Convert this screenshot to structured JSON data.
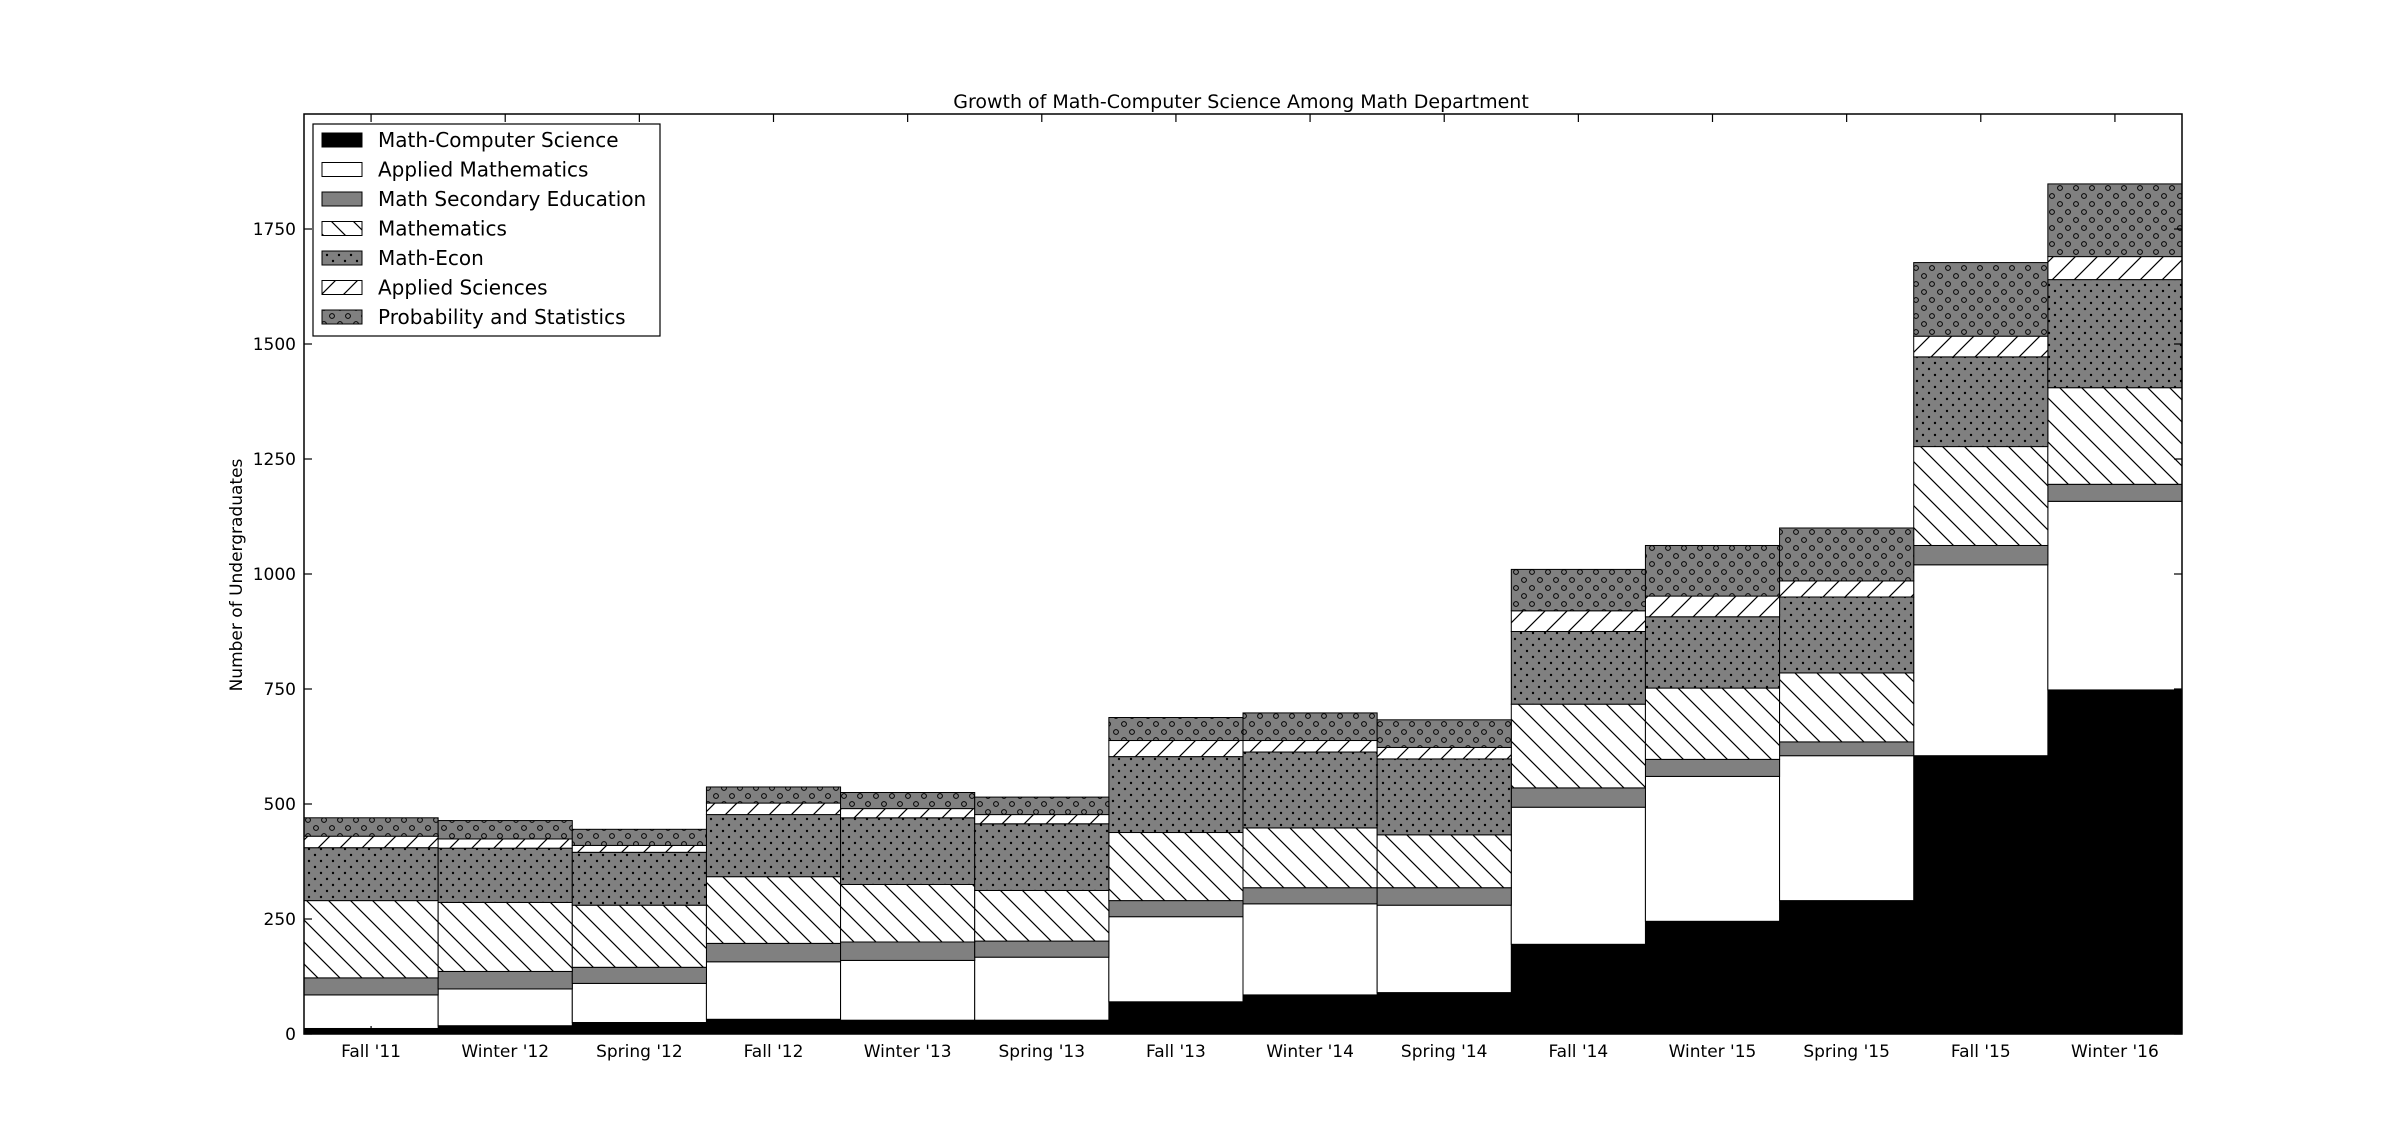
{
  "chart_data": {
    "type": "bar",
    "stacked": true,
    "title": "Growth of Math-Computer Science Among Math Department",
    "xlabel": "",
    "ylabel": "Number of Undergraduates",
    "ylim": [
      0,
      2000
    ],
    "yticks": [
      0,
      250,
      500,
      750,
      1000,
      1250,
      1500,
      1750
    ],
    "grid": false,
    "legend_position": "top-left",
    "categories": [
      "Fall '11",
      "Winter '12",
      "Spring '12",
      "Fall '12",
      "Winter '13",
      "Spring '13",
      "Fall '13",
      "Winter '14",
      "Spring '14",
      "Fall '14",
      "Winter '15",
      "Spring '15",
      "Fall '15",
      "Winter '16"
    ],
    "series": [
      {
        "name": "Math-Computer Science",
        "fill": "#000000",
        "pattern": "solid",
        "values": [
          12,
          18,
          25,
          32,
          30,
          30,
          70,
          85,
          90,
          195,
          245,
          290,
          605,
          748
        ]
      },
      {
        "name": "Applied Mathematics",
        "fill": "#ffffff",
        "pattern": "solid",
        "values": [
          73,
          80,
          85,
          125,
          130,
          137,
          185,
          198,
          190,
          298,
          315,
          315,
          415,
          410
        ]
      },
      {
        "name": "Math Secondary Education",
        "fill": "#808080",
        "pattern": "solid",
        "values": [
          37,
          38,
          35,
          40,
          40,
          35,
          35,
          35,
          38,
          42,
          37,
          30,
          42,
          37
        ]
      },
      {
        "name": "Mathematics",
        "fill": "#ffffff",
        "pattern": "backslash",
        "values": [
          168,
          150,
          135,
          145,
          125,
          110,
          148,
          130,
          115,
          182,
          155,
          150,
          215,
          210
        ]
      },
      {
        "name": "Math-Econ",
        "fill": "#808080",
        "pattern": "dots",
        "values": [
          115,
          118,
          115,
          135,
          145,
          145,
          165,
          165,
          165,
          158,
          155,
          165,
          195,
          235
        ]
      },
      {
        "name": "Applied Sciences",
        "fill": "#ffffff",
        "pattern": "slash",
        "values": [
          25,
          20,
          15,
          25,
          20,
          20,
          35,
          25,
          25,
          45,
          45,
          35,
          45,
          50
        ]
      },
      {
        "name": "Probability and Statistics",
        "fill": "#808080",
        "pattern": "circles",
        "values": [
          40,
          40,
          35,
          35,
          35,
          38,
          50,
          60,
          60,
          90,
          110,
          115,
          160,
          158
        ]
      }
    ]
  }
}
